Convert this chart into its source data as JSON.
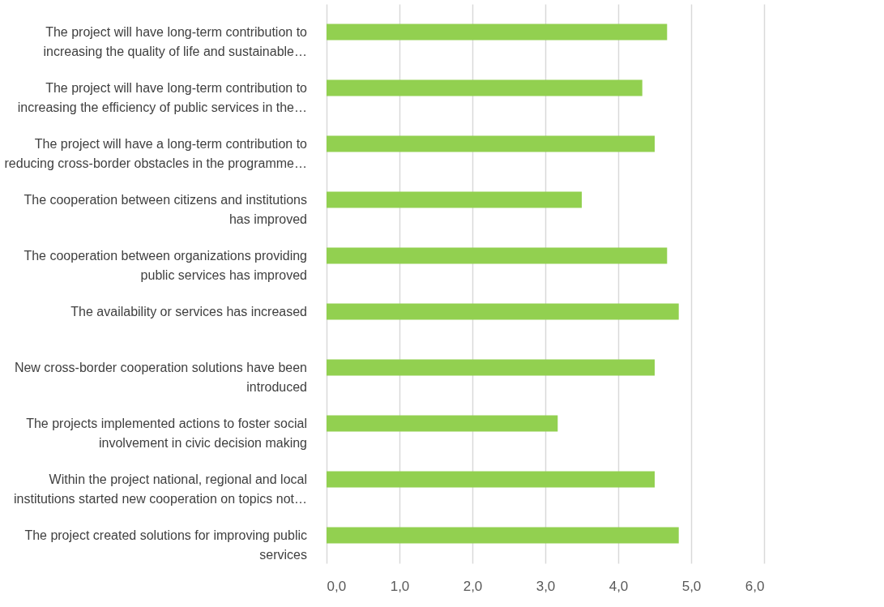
{
  "chart_data": {
    "type": "bar",
    "orientation": "horizontal",
    "categories": [
      "The project will have long-term contribution to increasing the quality of life and sustainable…",
      "The project will have long-term contribution to increasing the efficiency of public services in the…",
      "The project will have a long-term contribution to reducing cross-border obstacles in the programme…",
      "The cooperation between citizens and institutions has improved",
      "The cooperation between organizations providing public services has improved",
      "The availability or services has increased",
      "New cross-border cooperation solutions have been introduced",
      "The projects implemented actions to foster social involvement in civic decision making",
      "Within the project national, regional and local institutions started new cooperation on topics not…",
      "The project created solutions for improving public services"
    ],
    "values": [
      4.67,
      4.33,
      4.5,
      3.5,
      4.67,
      4.83,
      4.5,
      3.17,
      4.5,
      4.83
    ],
    "color": "#92d050",
    "xlim": [
      0,
      6
    ],
    "xticks": [
      {
        "value": 0,
        "label": "0,0"
      },
      {
        "value": 1,
        "label": "1,0"
      },
      {
        "value": 2,
        "label": "2,0"
      },
      {
        "value": 3,
        "label": "3,0"
      },
      {
        "value": 4,
        "label": "4,0"
      },
      {
        "value": 5,
        "label": "5,0"
      },
      {
        "value": 6,
        "label": "6,0"
      }
    ],
    "grid": "x"
  }
}
